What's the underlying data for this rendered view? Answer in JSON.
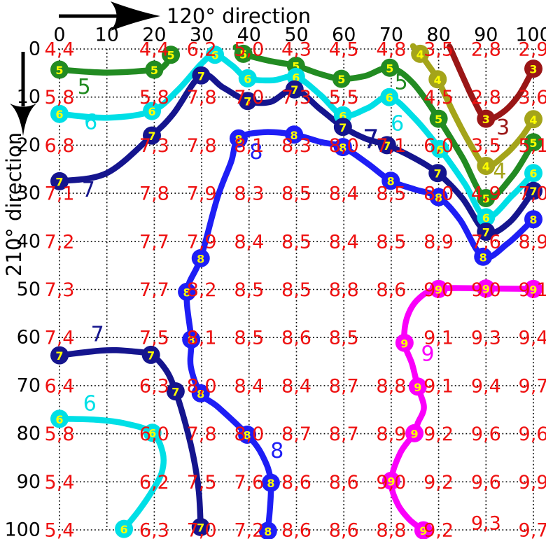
{
  "axes": {
    "x_title": "120° direction",
    "y_title": "210° direction",
    "x_ticks": [
      0,
      10,
      20,
      30,
      40,
      50,
      60,
      70,
      80,
      90,
      100
    ],
    "y_ticks": [
      0,
      10,
      20,
      30,
      40,
      50,
      60,
      70,
      80,
      90,
      100
    ]
  },
  "colors": {
    "value_text": "#ee1111",
    "tick_text": "#000000",
    "marker_digit": "#ffff00",
    "grid": "#000000",
    "level_3": "#9a1616",
    "level_4": "#a4a41a",
    "level_5": "#228b22",
    "level_6": "#00dfe6",
    "level_7": "#15158e",
    "level_8": "#1e1ef5",
    "level_9": "#fa00fa"
  },
  "chart_data": {
    "type": "contour",
    "title": "",
    "xlabel": "120° direction",
    "ylabel": "210° direction",
    "x_range": [
      0,
      100
    ],
    "y_range": [
      0,
      100
    ],
    "y_axis_inverted": true,
    "grid_style": "dotted",
    "value_grid": {
      "columns": [
        0,
        20,
        30,
        40,
        50,
        60,
        70,
        80,
        90,
        100
      ],
      "rows": [
        {
          "y": 0,
          "values": [
            "4,4",
            "4,4",
            "6,2",
            "5,0",
            "4,3",
            "4,5",
            "4,8",
            "3,5",
            "2,8",
            "2,9"
          ]
        },
        {
          "y": 10,
          "values": [
            "5,8",
            "5,8",
            "7,8",
            "7,0",
            "7,3",
            "5,5",
            null,
            "4,5",
            "2,8",
            "3,6"
          ]
        },
        {
          "y": 20,
          "values": [
            "6,8",
            "7,3",
            "7,8",
            "8,1",
            "8,3",
            "8,0",
            "7,1",
            "6,0",
            "3,5",
            "5,1"
          ]
        },
        {
          "y": 30,
          "values": [
            "7,1",
            "7,8",
            "7,9",
            "8,3",
            "8,5",
            "8,4",
            "8,5",
            "8,0",
            "4,9",
            "7,0"
          ]
        },
        {
          "y": 40,
          "values": [
            "7,2",
            "7,7",
            "7,9",
            "8,4",
            "8,5",
            "8,4",
            "8,5",
            "8,9",
            "7,6",
            "8,9"
          ]
        },
        {
          "y": 50,
          "values": [
            "7,3",
            "7,7",
            "8,2",
            "8,5",
            "8,5",
            "8,8",
            "8,6",
            "9,0",
            "9,0",
            "9,1"
          ]
        },
        {
          "y": 60,
          "values": [
            "7,4",
            "7,5",
            "8,1",
            "8,5",
            "8,6",
            "8,5",
            null,
            "9,1",
            "9,3",
            "9,4"
          ]
        },
        {
          "y": 70,
          "values": [
            "6,4",
            "6,3",
            "8,0",
            "8,4",
            "8,4",
            "8,7",
            "8,8",
            "9,1",
            "9,4",
            "9,7"
          ]
        },
        {
          "y": 80,
          "values": [
            "5,8",
            "6,0",
            "7,8",
            "8,0",
            "8,7",
            "8,7",
            "8,9",
            "9,2",
            "9,6",
            "9,6"
          ]
        },
        {
          "y": 90,
          "values": [
            "5,4",
            "6,2",
            "7,5",
            "7,6",
            "8,6",
            "8,6",
            "9,0",
            "9,2",
            "9,6",
            "9,9"
          ]
        },
        {
          "y": 100,
          "values": [
            "5,4",
            "6,3",
            "7,0",
            "7,2",
            "8,6",
            "8,6",
            "8,8",
            "9,2",
            "9,3",
            "9,7"
          ]
        }
      ],
      "value_offsets": [
        {
          "row": 100,
          "col": 90,
          "dy": -10
        }
      ]
    },
    "contours": [
      {
        "id": "c5a",
        "level": "5",
        "color": "#228b22",
        "points": [
          [
            0,
            4.3
          ],
          [
            10,
            4.9
          ],
          [
            20,
            4.3
          ],
          [
            22.3,
            3.3
          ],
          [
            23.5,
            1.2
          ]
        ],
        "markers": [
          [
            0,
            4.3
          ],
          [
            20,
            4.3
          ],
          [
            23.5,
            1.2
          ]
        ],
        "labels": [
          {
            "x": 5.2,
            "y": 7.9
          }
        ]
      },
      {
        "id": "c5b",
        "level": "5",
        "color": "#228b22",
        "points": [
          [
            37.2,
            -0.4
          ],
          [
            38.8,
            1
          ],
          [
            44,
            2.4
          ],
          [
            49.9,
            3.5
          ],
          [
            55,
            5.2
          ],
          [
            59.5,
            6.2
          ],
          [
            64.5,
            5.6
          ],
          [
            69.7,
            3.9
          ],
          [
            74.5,
            7
          ],
          [
            80,
            14.5
          ],
          [
            85,
            22.5
          ],
          [
            90,
            31
          ],
          [
            95.5,
            26.5
          ],
          [
            100,
            19.4
          ]
        ],
        "markers": [
          [
            38.8,
            1
          ],
          [
            49.9,
            3.5
          ],
          [
            59.5,
            6.2
          ],
          [
            69.7,
            3.9
          ],
          [
            80,
            14.5
          ],
          [
            90,
            31
          ],
          [
            100,
            19.4
          ]
        ],
        "labels": [
          {
            "x": 72.1,
            "y": 7.0
          }
        ]
      },
      {
        "id": "c6a",
        "level": "6",
        "color": "#00dfe6",
        "points": [
          [
            0,
            13.5
          ],
          [
            10,
            14.3
          ],
          [
            19.5,
            12.9
          ],
          [
            25,
            8.5
          ],
          [
            30,
            3
          ],
          [
            32.8,
            1.2
          ],
          [
            36.5,
            3.5
          ],
          [
            39.7,
            6.1
          ],
          [
            45,
            6.5
          ],
          [
            49.9,
            5.8
          ],
          [
            55,
            9.5
          ],
          [
            59.8,
            13.8
          ],
          [
            65,
            12.3
          ],
          [
            69.6,
            10
          ],
          [
            75,
            14.5
          ],
          [
            80.3,
            20.8
          ],
          [
            85.5,
            28
          ],
          [
            90,
            35
          ],
          [
            95.5,
            30.5
          ],
          [
            100,
            25.8
          ]
        ],
        "markers": [
          [
            0,
            13.5
          ],
          [
            19.5,
            12.9
          ],
          [
            32.8,
            1.2
          ],
          [
            39.7,
            6.1
          ],
          [
            49.9,
            5.8
          ],
          [
            59.8,
            13.8
          ],
          [
            69.6,
            10
          ],
          [
            80.3,
            20.8
          ],
          [
            90,
            35
          ],
          [
            100,
            25.8
          ]
        ],
        "labels": [
          {
            "x": 6.6,
            "y": 15.3
          },
          {
            "x": 71.3,
            "y": 15.6
          }
        ]
      },
      {
        "id": "c6b",
        "level": "6",
        "color": "#00dfe6",
        "points": [
          [
            0,
            76.9
          ],
          [
            8,
            77.1
          ],
          [
            14,
            77.9
          ],
          [
            19.6,
            79.8
          ],
          [
            21.8,
            84
          ],
          [
            21.6,
            88
          ],
          [
            19.5,
            92
          ],
          [
            16.5,
            96.3
          ],
          [
            13.6,
            99.8
          ]
        ],
        "markers": [
          [
            0,
            76.9
          ],
          [
            19.6,
            79.8
          ],
          [
            13.6,
            99.8
          ]
        ],
        "labels": [
          {
            "x": 6.4,
            "y": 73.8
          }
        ]
      },
      {
        "id": "c7a",
        "level": "7",
        "color": "#15158e",
        "points": [
          [
            0,
            27.5
          ],
          [
            10,
            25.8
          ],
          [
            19.5,
            18
          ],
          [
            24,
            13.5
          ],
          [
            29.9,
            5.5
          ],
          [
            34.5,
            8
          ],
          [
            39.7,
            10.8
          ],
          [
            44.5,
            11
          ],
          [
            49.6,
            8.4
          ],
          [
            55,
            12.5
          ],
          [
            59.8,
            16.2
          ],
          [
            64.5,
            18.6
          ],
          [
            69.1,
            20
          ],
          [
            74.5,
            22.5
          ],
          [
            79.8,
            25.8
          ],
          [
            85,
            31
          ],
          [
            90,
            38
          ],
          [
            95,
            36
          ],
          [
            100,
            29.5
          ]
        ],
        "markers": [
          [
            0,
            27.5
          ],
          [
            19.5,
            18
          ],
          [
            29.9,
            5.5
          ],
          [
            39.7,
            10.8
          ],
          [
            49.6,
            8.4
          ],
          [
            59.8,
            16.2
          ],
          [
            69.1,
            20
          ],
          [
            79.8,
            25.8
          ],
          [
            90,
            38
          ],
          [
            100,
            29.5
          ]
        ],
        "labels": [
          {
            "x": 6.1,
            "y": 29.3
          },
          {
            "x": 65.7,
            "y": 18.8,
            "size": 37
          }
        ]
      },
      {
        "id": "c7b",
        "level": "7",
        "color": "#15158e",
        "points": [
          [
            0,
            63.7
          ],
          [
            9,
            62.7
          ],
          [
            14.5,
            62.8
          ],
          [
            19.3,
            63.6
          ],
          [
            22.5,
            66.8
          ],
          [
            24.5,
            71.2
          ],
          [
            26.6,
            78
          ],
          [
            28.3,
            85
          ],
          [
            29.4,
            92
          ],
          [
            29.8,
            99.4
          ]
        ],
        "markers": [
          [
            0,
            63.7
          ],
          [
            19.3,
            63.6
          ],
          [
            24.5,
            71.2
          ],
          [
            29.8,
            99.4
          ]
        ],
        "labels": [
          {
            "x": 8.0,
            "y": 59.4
          }
        ]
      },
      {
        "id": "c8",
        "level": "8",
        "color": "#1e1ef5",
        "points": [
          [
            44,
            100.2
          ],
          [
            44.6,
            90.2
          ],
          [
            42.8,
            84.5
          ],
          [
            39.6,
            80.2
          ],
          [
            33.5,
            74.5
          ],
          [
            29.8,
            71.6
          ],
          [
            27.7,
            66
          ],
          [
            27.8,
            60.4
          ],
          [
            26.9,
            50.5
          ],
          [
            29.8,
            43.5
          ],
          [
            33.3,
            31
          ],
          [
            36.2,
            23.5
          ],
          [
            37.8,
            18.6
          ],
          [
            43,
            17.3
          ],
          [
            49.5,
            17.8
          ],
          [
            55,
            19.3
          ],
          [
            59.8,
            20.4
          ],
          [
            65,
            23.8
          ],
          [
            69.9,
            27.4
          ],
          [
            75,
            29.2
          ],
          [
            80,
            30.8
          ],
          [
            84.5,
            35.5
          ],
          [
            89.4,
            43.2
          ],
          [
            94.5,
            40.5
          ],
          [
            100,
            35.4
          ]
        ],
        "markers": [
          [
            44,
            100.2
          ],
          [
            44.6,
            90.2
          ],
          [
            39.6,
            80.2
          ],
          [
            29.8,
            71.6
          ],
          [
            27.8,
            60.4
          ],
          [
            26.9,
            50.5
          ],
          [
            29.8,
            43.5
          ],
          [
            37.8,
            18.6
          ],
          [
            49.5,
            17.8
          ],
          [
            59.8,
            20.4
          ],
          [
            69.9,
            27.4
          ],
          [
            80,
            30.8
          ],
          [
            89.4,
            43.2
          ],
          [
            100,
            35.4
          ]
        ],
        "labels": [
          {
            "x": 41.5,
            "y": 21.5
          },
          {
            "x": 45.9,
            "y": 83.6
          }
        ]
      },
      {
        "id": "c9",
        "level": "9",
        "color": "#fa00fa",
        "points": [
          [
            100,
            49.9
          ],
          [
            90,
            49.8
          ],
          [
            80,
            49.9
          ],
          [
            75.7,
            52
          ],
          [
            73.3,
            56
          ],
          [
            72.8,
            61.1
          ],
          [
            74.4,
            65.5
          ],
          [
            75.6,
            70.2
          ],
          [
            76.9,
            74.5
          ],
          [
            75.6,
            77.8
          ],
          [
            74.9,
            79.9
          ],
          [
            71.9,
            84
          ],
          [
            70,
            89.8
          ],
          [
            71.3,
            94.5
          ],
          [
            73.8,
            97.8
          ],
          [
            76.8,
            100.1
          ]
        ],
        "markers": [
          [
            100,
            49.9
          ],
          [
            90,
            49.8
          ],
          [
            80,
            49.9
          ],
          [
            72.8,
            61.1
          ],
          [
            75.6,
            70.2
          ],
          [
            74.9,
            79.9
          ],
          [
            70,
            89.8
          ],
          [
            76.8,
            100.1
          ]
        ],
        "labels": [
          {
            "x": 77.7,
            "y": 63.5
          }
        ]
      },
      {
        "id": "c3",
        "level": "3",
        "color": "#9a1616",
        "points": [
          [
            82.3,
            -0.5
          ],
          [
            85,
            5.5
          ],
          [
            87.5,
            10.8
          ],
          [
            90,
            14.5
          ],
          [
            93.5,
            13.2
          ],
          [
            97,
            9.5
          ],
          [
            100,
            4.1
          ]
        ],
        "markers": [
          [
            90,
            14.5
          ],
          [
            100,
            4.1
          ]
        ],
        "labels": [
          {
            "x": 93.6,
            "y": 16.4
          }
        ]
      },
      {
        "id": "c4",
        "level": "4",
        "color": "#a4a41a",
        "points": [
          [
            74.6,
            -0.6
          ],
          [
            76.1,
            1
          ],
          [
            78,
            3.6
          ],
          [
            79.8,
            6.3
          ],
          [
            83,
            13
          ],
          [
            86.5,
            19.5
          ],
          [
            90,
            24.3
          ],
          [
            94,
            22
          ],
          [
            97.5,
            18.3
          ],
          [
            100,
            14.6
          ]
        ],
        "markers": [
          [
            76.1,
            1
          ],
          [
            79.8,
            6.3
          ],
          [
            90,
            24.3
          ],
          [
            100,
            14.6
          ]
        ],
        "labels": [
          {
            "x": 92.9,
            "y": 25.5
          }
        ]
      }
    ]
  }
}
